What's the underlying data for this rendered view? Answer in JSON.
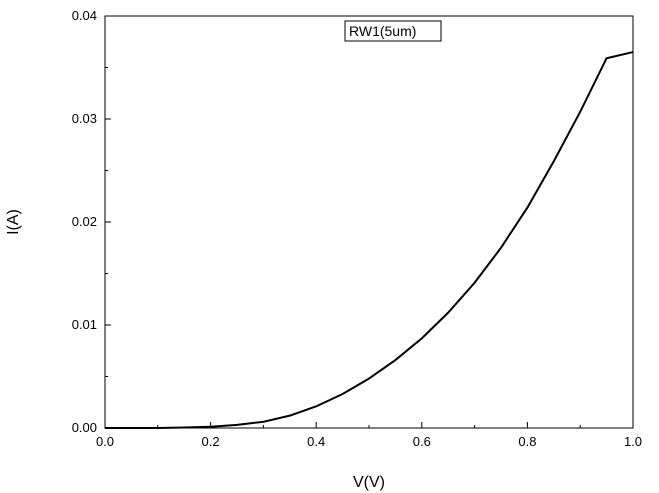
{
  "chart_data": {
    "type": "line",
    "xlabel": "V(V)",
    "ylabel": "I(A)",
    "xlim": [
      0.0,
      1.0
    ],
    "ylim": [
      0.0,
      0.04
    ],
    "x_ticks": [
      "0.0",
      "0.2",
      "0.4",
      "0.6",
      "0.8",
      "1.0"
    ],
    "y_ticks": [
      "0.00",
      "0.01",
      "0.02",
      "0.03",
      "0.04"
    ],
    "grid": false,
    "legend_position": "top-center",
    "series": [
      {
        "name": "RW1(5um)",
        "color": "#000000",
        "x": [
          0.0,
          0.05,
          0.1,
          0.15,
          0.2,
          0.25,
          0.3,
          0.35,
          0.4,
          0.45,
          0.5,
          0.55,
          0.6,
          0.65,
          0.7,
          0.75,
          0.8,
          0.85,
          0.9,
          0.95,
          1.0
        ],
        "y": [
          0.0,
          0.0,
          0.0,
          5e-05,
          0.00012,
          0.0003,
          0.0006,
          0.0012,
          0.0021,
          0.0033,
          0.0048,
          0.0066,
          0.0087,
          0.0112,
          0.0141,
          0.0175,
          0.0214,
          0.0259,
          0.0307,
          0.0359,
          0.0365
        ]
      }
    ]
  }
}
